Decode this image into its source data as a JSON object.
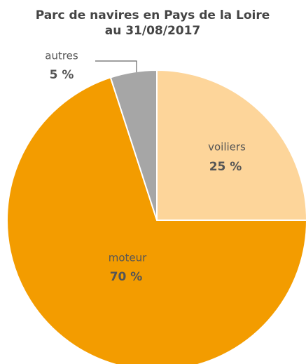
{
  "chart_data": {
    "type": "pie",
    "title": "Parc de navires en Pays de la Loire",
    "subtitle": "au 31/08/2017",
    "categories": [
      "voiliers",
      "moteur",
      "autres"
    ],
    "values": [
      25,
      70,
      5
    ],
    "value_labels": [
      "25 %",
      "70 %",
      "5 %"
    ],
    "colors": [
      "#fdd59a",
      "#f39c00",
      "#a6a6a6"
    ]
  }
}
